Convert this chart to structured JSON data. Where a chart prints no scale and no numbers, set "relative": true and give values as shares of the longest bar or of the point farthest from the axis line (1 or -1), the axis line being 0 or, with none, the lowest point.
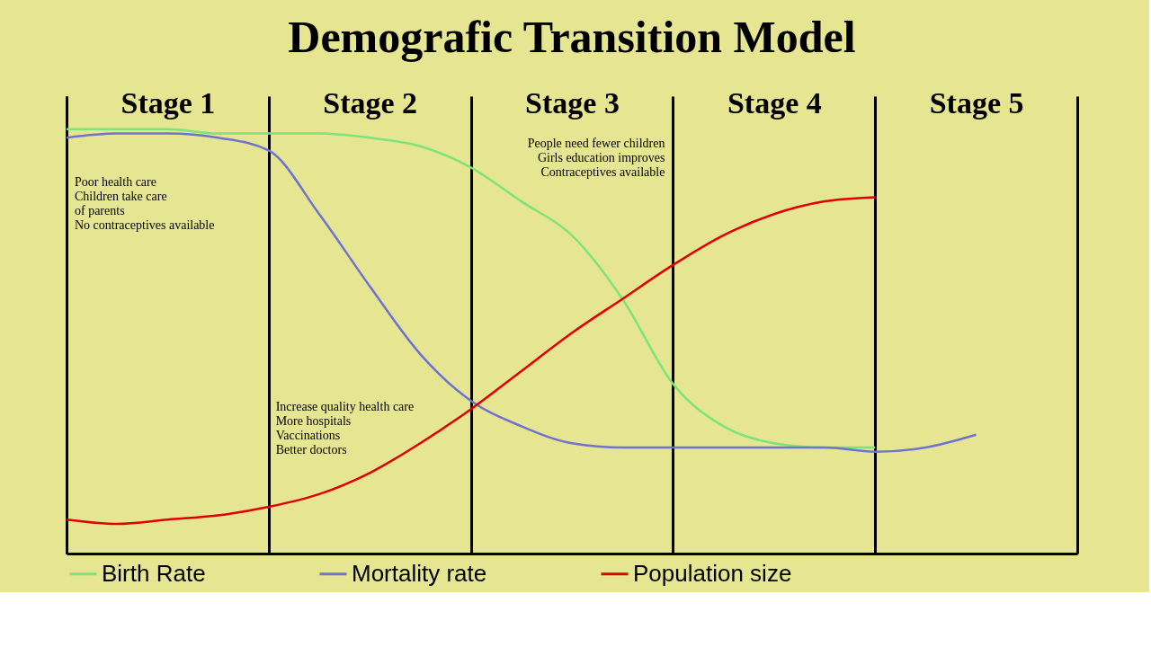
{
  "chart_data": {
    "type": "line",
    "title": "Demografic Transition Model",
    "relative": true,
    "tick_labels": "x",
    "grid": "x",
    "legend": "bottom",
    "categories": [
      null,
      null,
      "Stage 1",
      null,
      null,
      null,
      "Stage 2",
      null,
      null,
      null,
      "Stage 3",
      null,
      null,
      null,
      "Stage 4",
      null,
      null,
      null,
      "Stage 5",
      null,
      null
    ],
    "annotations": [
      "Poor health care\nChildren take care\n      of parents\nNo contraceptives available",
      "Increase quality health care\nMore hospitals\nVaccinations\nBetter doctors",
      "People need fewer children\nGirls education improves\nContraceptives available"
    ],
    "series": [
      {
        "name": "Birth Rate",
        "color": "#7de37a",
        "values": [
          1.0,
          1.0,
          1.0,
          0.99,
          0.99,
          0.99,
          0.98,
          0.96,
          0.91,
          0.83,
          0.75,
          0.6,
          0.4,
          0.3,
          0.26,
          0.25,
          0.25,
          null,
          null,
          null,
          null
        ]
      },
      {
        "name": "Mortality rate",
        "color": "#6f73d0",
        "values": [
          0.98,
          0.99,
          0.99,
          0.98,
          0.95,
          0.8,
          0.63,
          0.47,
          0.36,
          0.3,
          0.26,
          0.25,
          0.25,
          0.25,
          0.25,
          0.25,
          0.24,
          0.25,
          0.28,
          null,
          null
        ]
      },
      {
        "name": "Population size",
        "color": "#e00000",
        "values": [
          0.08,
          0.07,
          0.08,
          0.09,
          0.11,
          0.14,
          0.19,
          0.26,
          0.34,
          0.43,
          0.52,
          0.6,
          0.68,
          0.75,
          0.8,
          0.83,
          0.84,
          null,
          null,
          null,
          null
        ]
      }
    ]
  }
}
